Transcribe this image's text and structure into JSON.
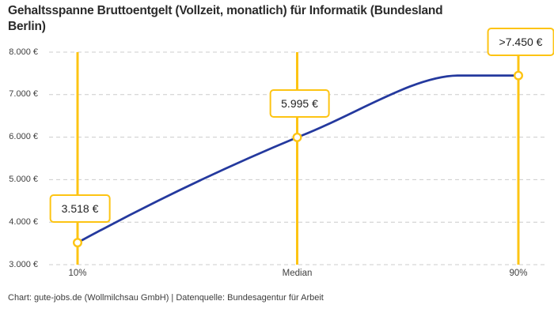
{
  "header": {
    "title": "Gehaltsspanne Bruttoentgelt (Vollzeit, monatlich) für Informatik (Bundesland Berlin)"
  },
  "footer": {
    "attribution": "Chart: gute-jobs.de (Wollmilchsau GmbH) | Datenquelle: Bundesagentur für Arbeit"
  },
  "chart_data": {
    "type": "line",
    "title": "Gehaltsspanne Bruttoentgelt (Vollzeit, monatlich) für Informatik (Bundesland Berlin)",
    "categories": [
      "10%",
      "Median",
      "90%"
    ],
    "series": [
      {
        "name": "Bruttoentgelt",
        "values": [
          3518,
          5995,
          7450
        ],
        "value_labels": [
          "3.518 €",
          "5.995 €",
          ">7.450 €"
        ]
      }
    ],
    "ylim": [
      3000,
      8000
    ],
    "yticks": [
      {
        "value": 3000,
        "label": "3.000 €"
      },
      {
        "value": 4000,
        "label": "4.000 €"
      },
      {
        "value": 5000,
        "label": "5.000 €"
      },
      {
        "value": 6000,
        "label": "6.000 €"
      },
      {
        "value": 7000,
        "label": "7.000 €"
      },
      {
        "value": 8000,
        "label": "8.000 €"
      }
    ],
    "grid": "horizontal-dashed",
    "legend": "none",
    "colors": {
      "line": "#24399e",
      "highlight": "#fdc413",
      "grid": "#cccccc",
      "marker_fill": "#ffffff",
      "label_text": "#222222"
    }
  }
}
